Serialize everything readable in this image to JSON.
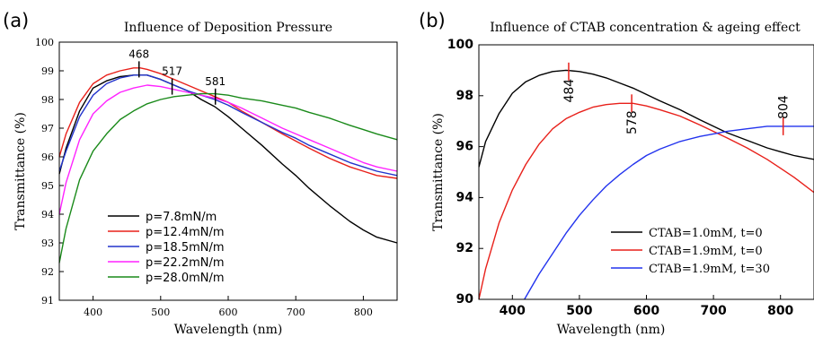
{
  "chart_data": [
    {
      "panel_label": "(a)",
      "type": "line",
      "title": "Influence of Deposition Pressure",
      "xlabel": "Wavelength (nm)",
      "ylabel": "Transmittance (%)",
      "xlim": [
        350,
        850
      ],
      "ylim": [
        91,
        100
      ],
      "xticks": [
        400,
        500,
        600,
        700,
        800
      ],
      "yticks": [
        91,
        92,
        93,
        94,
        95,
        96,
        97,
        98,
        99,
        100
      ],
      "legend_position": "bottom-left",
      "series": [
        {
          "name": "p=7.8mN/m",
          "color": "#000000",
          "x": [
            350,
            360,
            380,
            400,
            420,
            440,
            460,
            480,
            500,
            520,
            540,
            560,
            580,
            600,
            620,
            650,
            680,
            700,
            720,
            750,
            780,
            800,
            820,
            850
          ],
          "y": [
            95.4,
            96.3,
            97.6,
            98.4,
            98.65,
            98.8,
            98.85,
            98.85,
            98.7,
            98.5,
            98.3,
            98.0,
            97.75,
            97.4,
            97.0,
            96.4,
            95.75,
            95.35,
            94.9,
            94.3,
            93.75,
            93.45,
            93.2,
            93.0
          ]
        },
        {
          "name": "p=12.4mN/m",
          "color": "#e8201a",
          "x": [
            350,
            360,
            380,
            400,
            420,
            440,
            460,
            470,
            480,
            500,
            520,
            540,
            560,
            580,
            600,
            620,
            650,
            680,
            700,
            720,
            750,
            780,
            800,
            820,
            850
          ],
          "y": [
            96.0,
            96.8,
            97.9,
            98.55,
            98.85,
            99.0,
            99.1,
            99.1,
            99.05,
            98.9,
            98.7,
            98.5,
            98.3,
            98.1,
            97.9,
            97.6,
            97.2,
            96.8,
            96.55,
            96.3,
            95.95,
            95.65,
            95.5,
            95.35,
            95.25
          ]
        },
        {
          "name": "p=18.5mN/m",
          "color": "#2233cc",
          "x": [
            350,
            360,
            380,
            400,
            420,
            440,
            460,
            480,
            500,
            520,
            540,
            560,
            580,
            600,
            620,
            650,
            680,
            700,
            720,
            750,
            780,
            800,
            820,
            850
          ],
          "y": [
            95.5,
            96.2,
            97.4,
            98.15,
            98.55,
            98.75,
            98.85,
            98.85,
            98.7,
            98.5,
            98.3,
            98.15,
            98.0,
            97.8,
            97.55,
            97.2,
            96.85,
            96.65,
            96.4,
            96.1,
            95.8,
            95.65,
            95.5,
            95.35
          ]
        },
        {
          "name": "p=22.2mN/m",
          "color": "#ff22ff",
          "x": [
            350,
            360,
            380,
            400,
            420,
            440,
            460,
            480,
            500,
            520,
            540,
            560,
            580,
            600,
            620,
            650,
            680,
            700,
            720,
            750,
            780,
            800,
            820,
            850
          ],
          "y": [
            94.0,
            95.1,
            96.6,
            97.5,
            97.95,
            98.25,
            98.4,
            98.5,
            98.45,
            98.35,
            98.25,
            98.15,
            98.05,
            97.9,
            97.7,
            97.35,
            97.0,
            96.8,
            96.6,
            96.3,
            96.0,
            95.8,
            95.65,
            95.5
          ]
        },
        {
          "name": "p=28.0mN/m",
          "color": "#1a8a1a",
          "x": [
            350,
            360,
            380,
            400,
            420,
            440,
            460,
            480,
            500,
            520,
            540,
            560,
            580,
            600,
            620,
            650,
            680,
            700,
            720,
            750,
            780,
            800,
            820,
            850
          ],
          "y": [
            92.3,
            93.5,
            95.2,
            96.2,
            96.8,
            97.3,
            97.6,
            97.85,
            98.0,
            98.1,
            98.15,
            98.2,
            98.2,
            98.15,
            98.05,
            97.95,
            97.8,
            97.7,
            97.55,
            97.35,
            97.1,
            96.95,
            96.8,
            96.6
          ]
        }
      ],
      "annotations": [
        {
          "text": "468",
          "x": 468,
          "y": 99.05,
          "color": "#000000"
        },
        {
          "text": "517",
          "x": 517,
          "y": 98.45,
          "color": "#000000"
        },
        {
          "text": "581",
          "x": 581,
          "y": 98.1,
          "color": "#000000"
        }
      ]
    },
    {
      "panel_label": "(b)",
      "type": "line",
      "title": "Influence of CTAB concentration & ageing effect",
      "xlabel": "Wavelength (nm)",
      "ylabel": "Transmittance (%)",
      "xlim": [
        350,
        850
      ],
      "ylim": [
        90,
        100
      ],
      "xticks": [
        400,
        500,
        600,
        700,
        800
      ],
      "yticks": [
        90,
        92,
        94,
        96,
        98,
        100
      ],
      "legend_position": "bottom-right",
      "series": [
        {
          "name": "CTAB=1.0mM, t=0",
          "color": "#000000",
          "x": [
            350,
            360,
            380,
            400,
            420,
            440,
            460,
            480,
            500,
            520,
            540,
            560,
            580,
            600,
            620,
            650,
            680,
            700,
            720,
            750,
            780,
            800,
            820,
            850
          ],
          "y": [
            95.2,
            96.2,
            97.3,
            98.1,
            98.55,
            98.8,
            98.95,
            99.0,
            98.95,
            98.85,
            98.7,
            98.5,
            98.3,
            98.05,
            97.8,
            97.45,
            97.05,
            96.8,
            96.55,
            96.25,
            95.95,
            95.8,
            95.65,
            95.5
          ]
        },
        {
          "name": "CTAB=1.9mM, t=0",
          "color": "#e8201a",
          "x": [
            350,
            360,
            380,
            400,
            420,
            440,
            460,
            480,
            500,
            520,
            540,
            560,
            580,
            600,
            620,
            650,
            680,
            700,
            720,
            750,
            780,
            800,
            820,
            850
          ],
          "y": [
            90.0,
            91.2,
            93.0,
            94.3,
            95.3,
            96.1,
            96.7,
            97.1,
            97.35,
            97.55,
            97.65,
            97.7,
            97.7,
            97.6,
            97.45,
            97.2,
            96.85,
            96.6,
            96.35,
            95.95,
            95.5,
            95.15,
            94.8,
            94.2
          ]
        },
        {
          "name": "CTAB=1.9mM, t=30",
          "color": "#2233ee",
          "x": [
            418,
            440,
            460,
            480,
            500,
            520,
            540,
            560,
            580,
            600,
            620,
            650,
            680,
            700,
            720,
            750,
            780,
            800,
            820,
            850
          ],
          "y": [
            90.0,
            91.0,
            91.8,
            92.6,
            93.3,
            93.9,
            94.45,
            94.9,
            95.3,
            95.65,
            95.9,
            96.2,
            96.4,
            96.5,
            96.6,
            96.7,
            96.8,
            96.8,
            96.8,
            96.8
          ]
        }
      ],
      "annotations": [
        {
          "text": "484",
          "x": 484,
          "y": 98.95,
          "color": "#e8201a"
        },
        {
          "text": "578",
          "x": 578,
          "y": 97.7,
          "color": "#e8201a"
        },
        {
          "text": "804",
          "x": 804,
          "y": 96.8,
          "color": "#e8201a"
        }
      ]
    }
  ]
}
